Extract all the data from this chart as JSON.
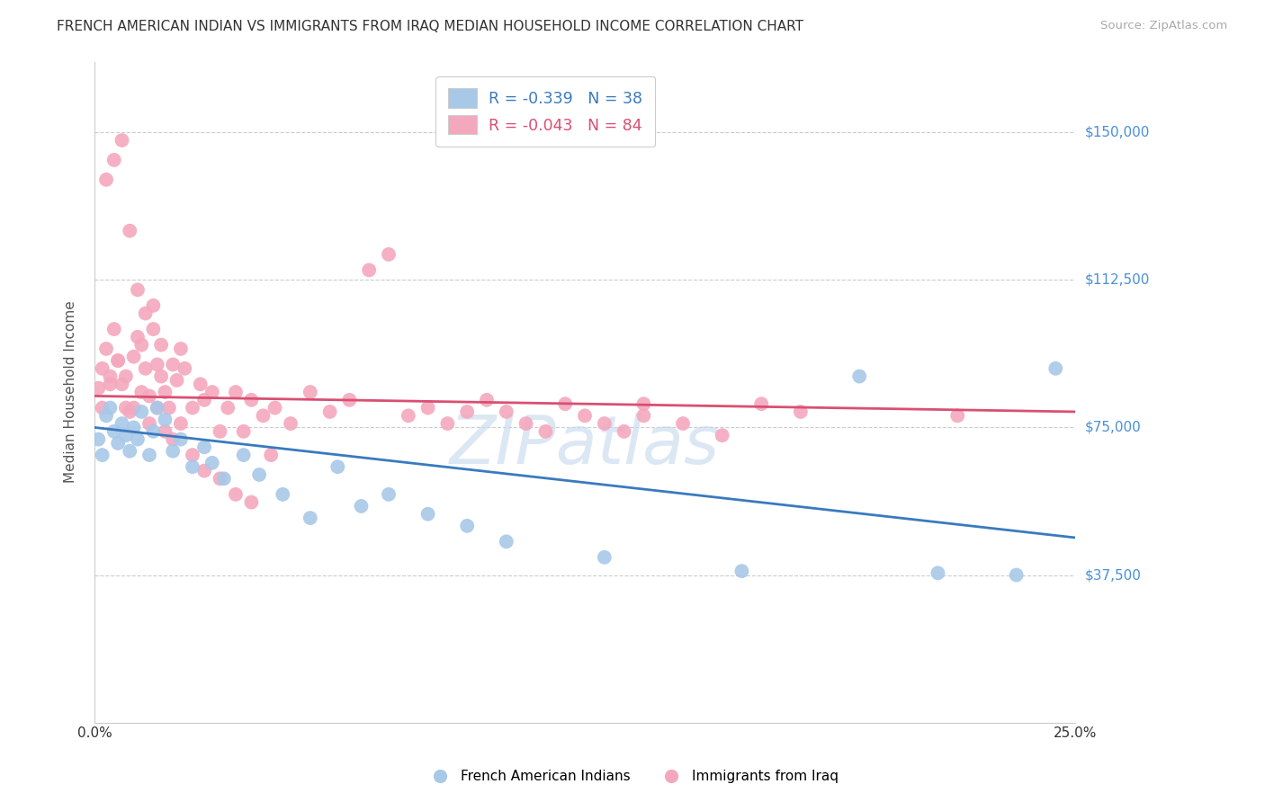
{
  "title": "FRENCH AMERICAN INDIAN VS IMMIGRANTS FROM IRAQ MEDIAN HOUSEHOLD INCOME CORRELATION CHART",
  "source": "Source: ZipAtlas.com",
  "ylabel": "Median Household Income",
  "yticks": [
    0,
    37500,
    75000,
    112500,
    150000
  ],
  "ytick_labels": [
    "",
    "$37,500",
    "$75,000",
    "$112,500",
    "$150,000"
  ],
  "xmin": 0.0,
  "xmax": 0.25,
  "ymin": 0,
  "ymax": 168000,
  "blue_R": "-0.339",
  "blue_N": "38",
  "pink_R": "-0.043",
  "pink_N": "84",
  "blue_color": "#a8c8e8",
  "pink_color": "#f4a8be",
  "blue_line_color": "#3a7abf",
  "pink_line_color": "#d94f72",
  "ytick_color": "#4a90d9",
  "legend_label_blue": "French American Indians",
  "legend_label_pink": "Immigrants from Iraq",
  "watermark": "ZIPatlas",
  "background_color": "#ffffff",
  "grid_color": "#cccccc",
  "blue_x": [
    0.001,
    0.002,
    0.003,
    0.004,
    0.005,
    0.006,
    0.007,
    0.008,
    0.009,
    0.01,
    0.011,
    0.012,
    0.014,
    0.015,
    0.016,
    0.018,
    0.02,
    0.022,
    0.025,
    0.028,
    0.03,
    0.033,
    0.038,
    0.042,
    0.048,
    0.055,
    0.062,
    0.068,
    0.075,
    0.085,
    0.095,
    0.105,
    0.13,
    0.165,
    0.195,
    0.215,
    0.235,
    0.245
  ],
  "blue_y": [
    72000,
    68000,
    78000,
    80000,
    74000,
    71000,
    76000,
    73000,
    69000,
    75000,
    72000,
    79000,
    68000,
    74000,
    80000,
    77000,
    69000,
    72000,
    65000,
    70000,
    66000,
    62000,
    68000,
    63000,
    58000,
    52000,
    65000,
    55000,
    58000,
    53000,
    50000,
    46000,
    42000,
    38500,
    88000,
    38000,
    37500,
    90000
  ],
  "pink_x": [
    0.001,
    0.002,
    0.003,
    0.004,
    0.005,
    0.006,
    0.007,
    0.008,
    0.009,
    0.01,
    0.011,
    0.012,
    0.013,
    0.014,
    0.015,
    0.016,
    0.017,
    0.018,
    0.019,
    0.02,
    0.021,
    0.022,
    0.023,
    0.025,
    0.027,
    0.028,
    0.03,
    0.032,
    0.034,
    0.036,
    0.038,
    0.04,
    0.043,
    0.046,
    0.05,
    0.055,
    0.06,
    0.065,
    0.07,
    0.075,
    0.08,
    0.085,
    0.09,
    0.095,
    0.1,
    0.105,
    0.11,
    0.115,
    0.12,
    0.125,
    0.13,
    0.135,
    0.14,
    0.15,
    0.16,
    0.17,
    0.003,
    0.005,
    0.007,
    0.009,
    0.011,
    0.013,
    0.015,
    0.017,
    0.002,
    0.004,
    0.006,
    0.008,
    0.01,
    0.012,
    0.014,
    0.016,
    0.018,
    0.02,
    0.022,
    0.025,
    0.028,
    0.032,
    0.036,
    0.04,
    0.045,
    0.14,
    0.18,
    0.22
  ],
  "pink_y": [
    85000,
    90000,
    95000,
    88000,
    100000,
    92000,
    86000,
    80000,
    79000,
    93000,
    98000,
    96000,
    90000,
    83000,
    106000,
    91000,
    88000,
    84000,
    80000,
    91000,
    87000,
    95000,
    90000,
    80000,
    86000,
    82000,
    84000,
    74000,
    80000,
    84000,
    74000,
    82000,
    78000,
    80000,
    76000,
    84000,
    79000,
    82000,
    115000,
    119000,
    78000,
    80000,
    76000,
    79000,
    82000,
    79000,
    76000,
    74000,
    81000,
    78000,
    76000,
    74000,
    81000,
    76000,
    73000,
    81000,
    138000,
    143000,
    148000,
    125000,
    110000,
    104000,
    100000,
    96000,
    80000,
    86000,
    92000,
    88000,
    80000,
    84000,
    76000,
    80000,
    74000,
    72000,
    76000,
    68000,
    64000,
    62000,
    58000,
    56000,
    68000,
    78000,
    79000,
    78000
  ]
}
